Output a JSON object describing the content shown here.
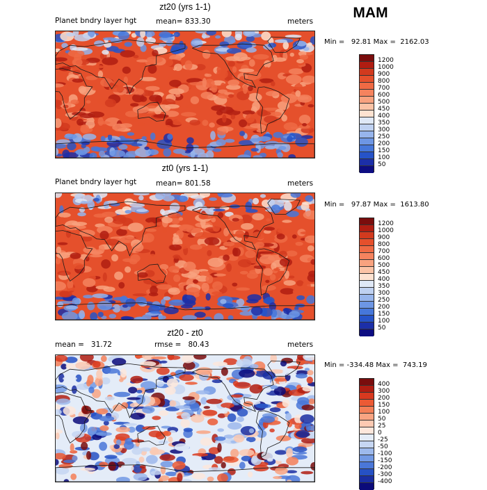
{
  "season": "MAM",
  "panels": [
    {
      "title": "zt20 (yrs 1-1)",
      "left_label": "Planet bndry layer hgt",
      "center_label": "mean= 833.30",
      "units": "meters",
      "min_max": "Min =   92.81 Max =  2162.03",
      "levels": [
        "1200",
        "1000",
        "900",
        "800",
        "700",
        "600",
        "500",
        "450",
        "400",
        "350",
        "300",
        "250",
        "200",
        "150",
        "100",
        "50"
      ],
      "colors": [
        "#7a0d0d",
        "#b01d12",
        "#d23a1e",
        "#e5502c",
        "#ef6a44",
        "#f5835e",
        "#f8a27f",
        "#fbc3a6",
        "#fde2d1",
        "#dfe8f6",
        "#bfd1f1",
        "#97b5ec",
        "#6d96e4",
        "#4677da",
        "#2653c8",
        "#1c2fa8",
        "#0d0d82"
      ],
      "diff": false
    },
    {
      "title": "zt0 (yrs 1-1)",
      "left_label": "Planet bndry layer hgt",
      "center_label": "mean= 801.58",
      "units": "meters",
      "min_max": "Min =   97.87 Max =  1613.80",
      "levels": [
        "1200",
        "1000",
        "900",
        "800",
        "700",
        "600",
        "500",
        "450",
        "400",
        "350",
        "300",
        "250",
        "200",
        "150",
        "100",
        "50"
      ],
      "colors": [
        "#7a0d0d",
        "#b01d12",
        "#d23a1e",
        "#e5502c",
        "#ef6a44",
        "#f5835e",
        "#f8a27f",
        "#fbc3a6",
        "#fde2d1",
        "#dfe8f6",
        "#bfd1f1",
        "#97b5ec",
        "#6d96e4",
        "#4677da",
        "#2653c8",
        "#1c2fa8",
        "#0d0d82"
      ],
      "diff": false
    },
    {
      "title": "zt20 - zt0",
      "left_label": "mean =   31.72",
      "center_label": "rmse =   80.43",
      "units": "meters",
      "min_max": "Min = -334.48 Max =  743.19",
      "levels": [
        "400",
        "300",
        "200",
        "150",
        "100",
        "50",
        "25",
        "0",
        "-25",
        "-50",
        "-100",
        "-150",
        "-200",
        "-300",
        "-400"
      ],
      "colors": [
        "#7a0d0d",
        "#b01d12",
        "#d8391f",
        "#ec5a34",
        "#f47f57",
        "#f9a482",
        "#fcc9b2",
        "#fde7dc",
        "#e4ecf8",
        "#c6d6f2",
        "#9db9ec",
        "#7299e4",
        "#4a77d8",
        "#2651c4",
        "#1a2ea2",
        "#0b0b7a"
      ],
      "diff": true
    }
  ]
}
